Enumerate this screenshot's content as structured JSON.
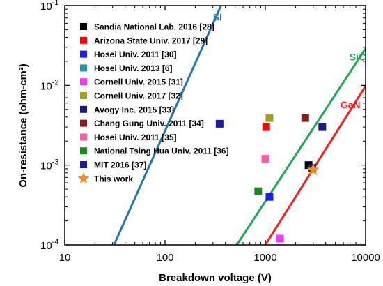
{
  "chart_data": {
    "type": "scatter",
    "xlabel": "Breakdown voltage (V)",
    "ylabel": "On-resistance (ohm-cm²)",
    "x_scale": "log",
    "y_scale": "log",
    "xlim": [
      10,
      10000
    ],
    "ylim": [
      0.0001,
      0.1
    ],
    "x_ticks": [
      {
        "value": 10,
        "label": "10"
      },
      {
        "value": 100,
        "label": "100"
      },
      {
        "value": 1000,
        "label": "1000"
      },
      {
        "value": 10000,
        "label": "10000"
      }
    ],
    "y_ticks": [
      {
        "value": 0.0001,
        "base": "10",
        "exp": "-4"
      },
      {
        "value": 0.001,
        "base": "10",
        "exp": "-3"
      },
      {
        "value": 0.01,
        "base": "10",
        "exp": "-2"
      },
      {
        "value": 0.1,
        "base": "10",
        "exp": "-1"
      }
    ],
    "limit_lines": [
      {
        "name": "Si",
        "color": "#1f77b4",
        "x": [
          31,
          362
        ],
        "y": [
          0.0001,
          0.1
        ],
        "label_at": [
          300,
          0.065
        ]
      },
      {
        "name": "SiC",
        "color": "#1aaa55",
        "x": [
          520,
          10000
        ],
        "y": [
          0.0001,
          0.029
        ],
        "label_at": [
          6900,
          0.0205
        ]
      },
      {
        "name": "GaN",
        "color": "#ff1a1a",
        "x": [
          1000,
          10000
        ],
        "y": [
          0.0001,
          0.0098
        ],
        "label_at": [
          5600,
          0.0052
        ]
      }
    ],
    "series": [
      {
        "name": "Sandia National Lab. 2016 [28]",
        "color": "#000000",
        "marker": "square",
        "x": [
          2700
        ],
        "y": [
          0.001
        ]
      },
      {
        "name": "Arizona State Univ. 2017 [29]",
        "color": "#ff0000",
        "marker": "square",
        "x": [
          1020
        ],
        "y": [
          0.003
        ]
      },
      {
        "name": "Hosei Univ. 2011 [30]",
        "color": "#1a1aff",
        "marker": "square",
        "x": [
          1100
        ],
        "y": [
          0.0004
        ]
      },
      {
        "name": "Hosei Univ. 2013 [6]",
        "color": "#1a9a9a",
        "marker": "square",
        "x": [],
        "y": []
      },
      {
        "name": "Cornell Univ. 2015 [31]",
        "color": "#ff33ff",
        "marker": "square",
        "x": [
          1400
        ],
        "y": [
          0.00012
        ]
      },
      {
        "name": "Cornell Univ. 2017 [32]",
        "color": "#a0a020",
        "marker": "square",
        "x": [
          1100
        ],
        "y": [
          0.0039
        ]
      },
      {
        "name": "Avogy Inc. 2015 [33]",
        "color": "#1a1a80",
        "marker": "square",
        "x": [
          3700
        ],
        "y": [
          0.003
        ]
      },
      {
        "name": "Chang Gung Univ. 2011 [34]",
        "color": "#8b1a1a",
        "marker": "square",
        "x": [
          2500
        ],
        "y": [
          0.0039
        ]
      },
      {
        "name": "Hosei Univ. 2011 [35]",
        "color": "#ff5aa5",
        "marker": "square",
        "x": [
          1000
        ],
        "y": [
          0.0012
        ]
      },
      {
        "name": "National Tsing Hua Univ. 2011 [36]",
        "color": "#1a8a1a",
        "marker": "square",
        "x": [
          850
        ],
        "y": [
          0.00047
        ]
      },
      {
        "name": "MIT 2016 [37]",
        "color": "#1a1a9a",
        "marker": "square",
        "x": [
          350
        ],
        "y": [
          0.0033
        ]
      },
      {
        "name": "This work",
        "color": "#ff8c1a",
        "marker": "star",
        "x": [
          3000
        ],
        "y": [
          0.00087
        ]
      }
    ],
    "extra_points": [
      {
        "color": "#1a1a9a",
        "x": 2950,
        "y": 0.00092
      }
    ],
    "legend_position": "top-left",
    "grid": false
  }
}
